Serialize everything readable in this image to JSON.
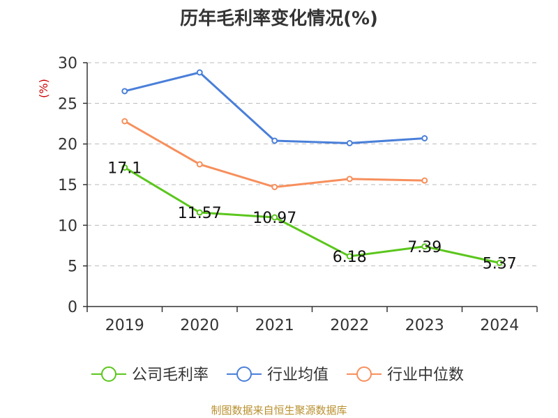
{
  "title": "历年毛利率变化情况(%)",
  "source": "制图数据来自恒生聚源数据库",
  "chart_data": {
    "type": "line",
    "title": "历年毛利率变化情况(%)",
    "ylabel": "(%)",
    "categories": [
      "2019",
      "2020",
      "2021",
      "2022",
      "2023",
      "2024"
    ],
    "ylim": [
      0,
      30
    ],
    "yticks": [
      "0",
      "5",
      "10",
      "15",
      "20",
      "25",
      "30"
    ],
    "grid": true,
    "legend_position": "bottom",
    "series": [
      {
        "name": "公司毛利率",
        "color": "#5bc61c",
        "values": [
          17.1,
          11.57,
          10.97,
          6.18,
          7.39,
          5.37
        ],
        "labels": [
          "17.1",
          "11.57",
          "10.97",
          "6.18",
          "7.39",
          "5.37"
        ]
      },
      {
        "name": "行业均值",
        "color": "#4a7fd9",
        "values": [
          26.5,
          28.8,
          20.4,
          20.1,
          20.7,
          null
        ]
      },
      {
        "name": "行业中位数",
        "color": "#f78f5c",
        "values": [
          22.8,
          17.5,
          14.7,
          15.7,
          15.5,
          null
        ]
      }
    ]
  }
}
